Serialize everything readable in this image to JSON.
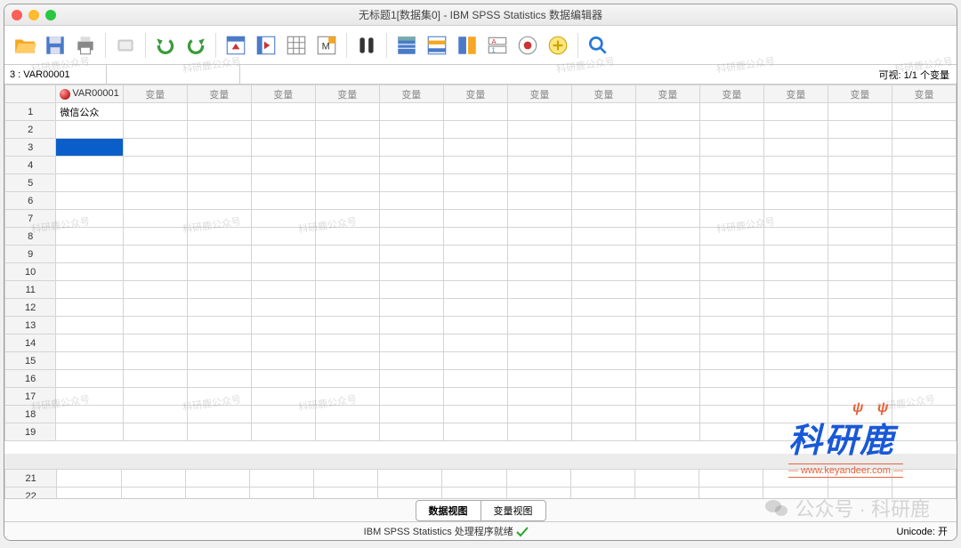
{
  "title": "无标题1[数据集0] - IBM SPSS Statistics 数据编辑器",
  "cellRef": {
    "label": "3 : VAR00001",
    "value": ""
  },
  "visibleVars": "可视: 1/1 个变量",
  "columns": [
    "VAR00001",
    "变量",
    "变量",
    "变量",
    "变量",
    "变量",
    "变量",
    "变量",
    "变量",
    "变量",
    "变量",
    "变量",
    "变量",
    "变量"
  ],
  "activeColIndex": 0,
  "rows": [
    {
      "n": 1,
      "cells": [
        "微信公众"
      ]
    },
    {
      "n": 2,
      "cells": [
        ""
      ]
    },
    {
      "n": 3,
      "cells": [
        ""
      ],
      "selected": 0
    },
    {
      "n": 4,
      "cells": [
        ""
      ]
    },
    {
      "n": 5,
      "cells": [
        ""
      ]
    },
    {
      "n": 6,
      "cells": [
        ""
      ]
    },
    {
      "n": 7,
      "cells": [
        ""
      ]
    },
    {
      "n": 8,
      "cells": [
        ""
      ]
    },
    {
      "n": 9,
      "cells": [
        ""
      ]
    },
    {
      "n": 10,
      "cells": [
        ""
      ]
    },
    {
      "n": 11,
      "cells": [
        ""
      ]
    },
    {
      "n": 12,
      "cells": [
        ""
      ]
    },
    {
      "n": 13,
      "cells": [
        ""
      ]
    },
    {
      "n": 14,
      "cells": [
        ""
      ]
    },
    {
      "n": 15,
      "cells": [
        ""
      ]
    },
    {
      "n": 16,
      "cells": [
        ""
      ]
    },
    {
      "n": 17,
      "cells": [
        ""
      ]
    },
    {
      "n": 18,
      "cells": [
        ""
      ]
    },
    {
      "n": 19,
      "cells": [
        ""
      ]
    }
  ],
  "lowerRows": [
    21,
    22
  ],
  "tabs": {
    "data": "数据视图",
    "var": "变量视图"
  },
  "status": {
    "text": "IBM SPSS Statistics 处理程序就绪",
    "unicode": "Unicode: 开"
  },
  "watermarkText": "科研鹿公众号",
  "logo": {
    "main": "科研鹿",
    "sub": "— www.keyandeer.com —"
  },
  "wechat": "公众号 · 科研鹿",
  "colors": {
    "selection": "#0a5ec9",
    "logoBlue": "#1959d8",
    "logoOrange": "#e8643c"
  }
}
